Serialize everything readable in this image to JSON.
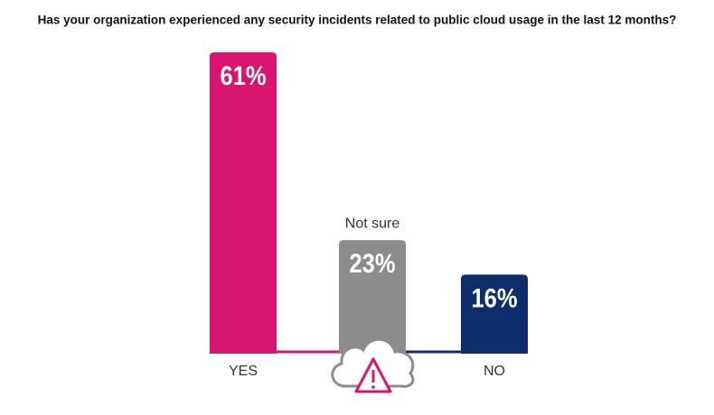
{
  "chart_data": {
    "type": "bar",
    "title": "Has your organization experienced any security incidents related to public cloud usage in the last 12 months?",
    "categories": [
      "YES",
      "Not sure",
      "NO"
    ],
    "values": [
      61,
      23,
      16
    ],
    "value_labels": [
      "61%",
      "23%",
      "16%"
    ],
    "colors": [
      "#d9166f",
      "#8c8c8c",
      "#0e2d6b"
    ]
  }
}
